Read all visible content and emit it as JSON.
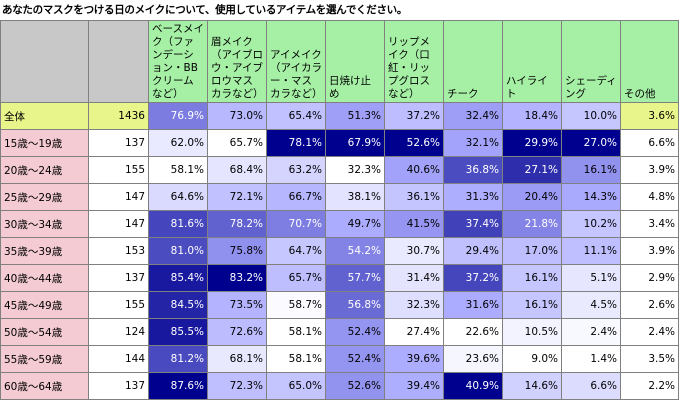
{
  "title": "あなたのマスクをつける日のメイクについて、使用しているアイテムを選んでください。",
  "chart_data": {
    "type": "table",
    "columns": [
      "ベースメイク（ファンデーション・BBクリームなど）",
      "眉メイク（アイブロウ・アイブロウマスカラなど）",
      "アイメイク（アイカラー・マスカラなど）",
      "日焼け止め",
      "リップメイク（口紅・リップグロスなど）",
      "チーク",
      "ハイライト",
      "シェーディング",
      "その他"
    ],
    "rows": [
      {
        "label": "全体",
        "n": "1436",
        "values": [
          "76.9%",
          "73.0%",
          "65.4%",
          "51.3%",
          "37.2%",
          "32.4%",
          "18.4%",
          "10.0%",
          "3.6%"
        ]
      },
      {
        "label": "15歳～19歳",
        "n": "137",
        "values": [
          "62.0%",
          "65.7%",
          "78.1%",
          "67.9%",
          "52.6%",
          "32.1%",
          "29.9%",
          "27.0%",
          "6.6%"
        ]
      },
      {
        "label": "20歳～24歳",
        "n": "155",
        "values": [
          "58.1%",
          "68.4%",
          "63.2%",
          "32.3%",
          "40.6%",
          "36.8%",
          "27.1%",
          "16.1%",
          "3.9%"
        ]
      },
      {
        "label": "25歳～29歳",
        "n": "147",
        "values": [
          "64.6%",
          "72.1%",
          "66.7%",
          "38.1%",
          "36.1%",
          "31.3%",
          "20.4%",
          "14.3%",
          "4.8%"
        ]
      },
      {
        "label": "30歳～34歳",
        "n": "147",
        "values": [
          "81.6%",
          "78.2%",
          "70.7%",
          "49.7%",
          "41.5%",
          "37.4%",
          "21.8%",
          "10.2%",
          "3.4%"
        ]
      },
      {
        "label": "35歳～39歳",
        "n": "153",
        "values": [
          "81.0%",
          "75.8%",
          "64.7%",
          "54.2%",
          "30.7%",
          "29.4%",
          "17.0%",
          "11.1%",
          "3.9%"
        ]
      },
      {
        "label": "40歳～44歳",
        "n": "137",
        "values": [
          "85.4%",
          "83.2%",
          "65.7%",
          "57.7%",
          "31.4%",
          "37.2%",
          "16.1%",
          "5.1%",
          "2.9%"
        ]
      },
      {
        "label": "45歳～49歳",
        "n": "155",
        "values": [
          "84.5%",
          "73.5%",
          "58.7%",
          "56.8%",
          "32.3%",
          "31.6%",
          "16.1%",
          "4.5%",
          "2.6%"
        ]
      },
      {
        "label": "50歳～54歳",
        "n": "124",
        "values": [
          "85.5%",
          "72.6%",
          "58.1%",
          "52.4%",
          "27.4%",
          "22.6%",
          "10.5%",
          "2.4%",
          "2.4%"
        ]
      },
      {
        "label": "55歳～59歳",
        "n": "144",
        "values": [
          "81.2%",
          "68.1%",
          "58.1%",
          "52.4%",
          "39.6%",
          "23.6%",
          "9.0%",
          "1.4%",
          "3.5%"
        ]
      },
      {
        "label": "60歳～64歳",
        "n": "137",
        "values": [
          "87.6%",
          "72.3%",
          "65.0%",
          "52.6%",
          "39.4%",
          "40.9%",
          "14.6%",
          "6.6%",
          "2.2%"
        ]
      }
    ],
    "colors": {
      "header": "#a6f0a6",
      "header_blank": "#c8c8c8",
      "total_row": "#e8f58a",
      "age_label": "#f4cbd3",
      "count_cell": "#ffffff",
      "heat_min": "#ffffff",
      "heat_mid": "#aaaaff",
      "heat_max": "#00008f"
    }
  }
}
